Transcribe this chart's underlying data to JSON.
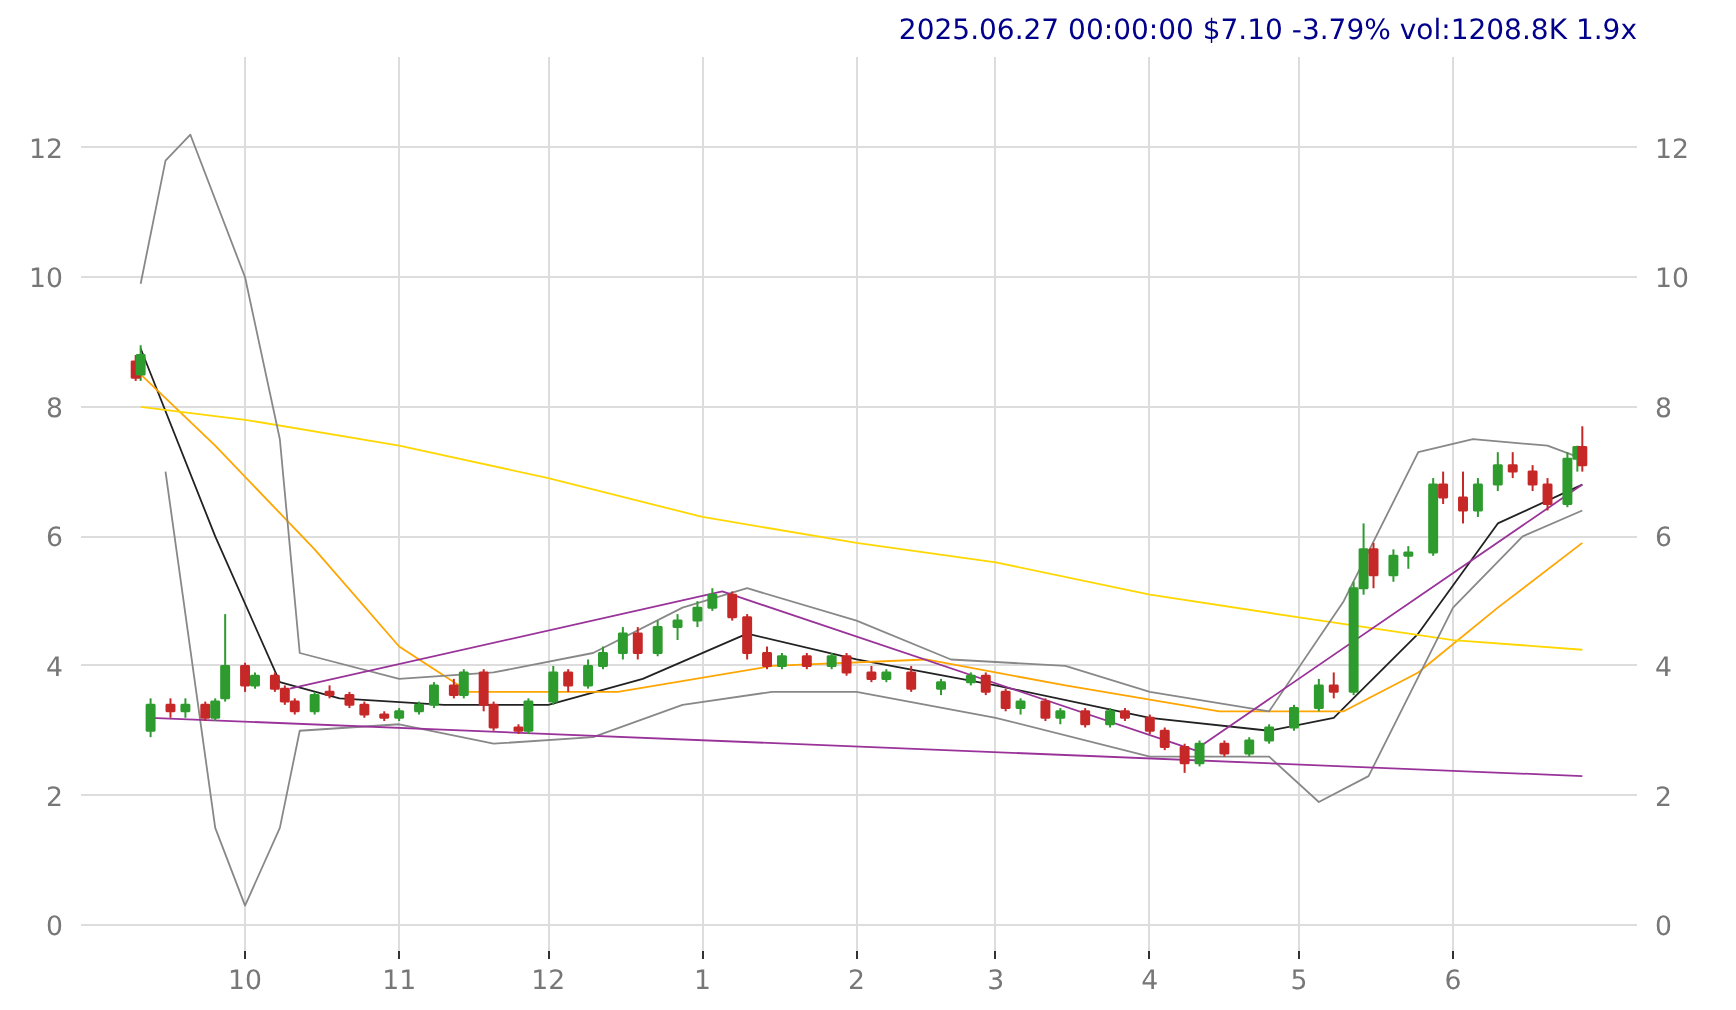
{
  "chart_data": {
    "type": "candlestick",
    "title": "2025.06.27 00:00:00 $7.10 -3.79% vol:1208.8K 1.9x",
    "x": [
      "2024-09-09",
      "2024-09-10",
      "2024-09-12",
      "2024-09-16",
      "2024-09-19",
      "2024-09-23",
      "2024-09-25",
      "2024-09-27",
      "2024-10-01",
      "2024-10-03",
      "2024-10-07",
      "2024-10-09",
      "2024-10-11",
      "2024-10-15",
      "2024-10-18",
      "2024-10-22",
      "2024-10-25",
      "2024-10-29",
      "2024-11-01",
      "2024-11-05",
      "2024-11-08",
      "2024-11-12",
      "2024-11-14",
      "2024-11-18",
      "2024-11-20",
      "2024-11-25",
      "2024-11-27",
      "2024-12-02",
      "2024-12-05",
      "2024-12-09",
      "2024-12-12",
      "2024-12-16",
      "2024-12-19",
      "2024-12-23",
      "2024-12-27",
      "2024-12-31",
      "2025-01-03",
      "2025-01-07",
      "2025-01-10",
      "2025-01-14",
      "2025-01-17",
      "2025-01-22",
      "2025-01-27",
      "2025-01-30",
      "2025-02-04",
      "2025-02-07",
      "2025-02-12",
      "2025-02-18",
      "2025-02-24",
      "2025-02-27",
      "2025-03-03",
      "2025-03-06",
      "2025-03-11",
      "2025-03-14",
      "2025-03-19",
      "2025-03-24",
      "2025-03-27",
      "2025-04-01",
      "2025-04-04",
      "2025-04-08",
      "2025-04-11",
      "2025-04-16",
      "2025-04-21",
      "2025-04-25",
      "2025-04-30",
      "2025-05-05",
      "2025-05-08",
      "2025-05-12",
      "2025-05-14",
      "2025-05-16",
      "2025-05-20",
      "2025-05-23",
      "2025-05-28",
      "2025-05-30",
      "2025-06-03",
      "2025-06-06",
      "2025-06-10",
      "2025-06-13",
      "2025-06-17",
      "2025-06-20",
      "2025-06-24",
      "2025-06-26",
      "2025-06-27"
    ],
    "ohlc": [
      [
        8.7,
        8.8,
        8.4,
        8.45
      ],
      [
        8.5,
        8.95,
        8.4,
        8.8
      ],
      [
        3.0,
        3.5,
        2.9,
        3.4
      ],
      [
        3.4,
        3.5,
        3.2,
        3.3
      ],
      [
        3.3,
        3.5,
        3.2,
        3.4
      ],
      [
        3.4,
        3.45,
        3.15,
        3.2
      ],
      [
        3.2,
        3.5,
        3.15,
        3.45
      ],
      [
        3.5,
        4.8,
        3.45,
        4.0
      ],
      [
        4.0,
        4.05,
        3.6,
        3.7
      ],
      [
        3.7,
        3.9,
        3.65,
        3.85
      ],
      [
        3.85,
        3.9,
        3.6,
        3.65
      ],
      [
        3.65,
        3.7,
        3.4,
        3.45
      ],
      [
        3.45,
        3.5,
        3.25,
        3.3
      ],
      [
        3.3,
        3.6,
        3.25,
        3.55
      ],
      [
        3.6,
        3.7,
        3.5,
        3.55
      ],
      [
        3.55,
        3.6,
        3.35,
        3.4
      ],
      [
        3.4,
        3.45,
        3.2,
        3.25
      ],
      [
        3.25,
        3.3,
        3.15,
        3.2
      ],
      [
        3.2,
        3.35,
        3.15,
        3.3
      ],
      [
        3.3,
        3.45,
        3.25,
        3.4
      ],
      [
        3.4,
        3.75,
        3.35,
        3.7
      ],
      [
        3.7,
        3.8,
        3.5,
        3.55
      ],
      [
        3.55,
        3.95,
        3.5,
        3.9
      ],
      [
        3.9,
        3.95,
        3.3,
        3.4
      ],
      [
        3.4,
        3.45,
        3.0,
        3.05
      ],
      [
        3.05,
        3.1,
        2.95,
        3.0
      ],
      [
        3.0,
        3.5,
        2.95,
        3.45
      ],
      [
        3.45,
        4.0,
        3.4,
        3.9
      ],
      [
        3.9,
        3.95,
        3.6,
        3.7
      ],
      [
        3.7,
        4.1,
        3.65,
        4.0
      ],
      [
        4.0,
        4.3,
        3.95,
        4.2
      ],
      [
        4.2,
        4.6,
        4.1,
        4.5
      ],
      [
        4.5,
        4.6,
        4.1,
        4.2
      ],
      [
        4.2,
        4.7,
        4.15,
        4.6
      ],
      [
        4.6,
        4.8,
        4.4,
        4.7
      ],
      [
        4.7,
        5.0,
        4.6,
        4.9
      ],
      [
        4.9,
        5.2,
        4.85,
        5.1
      ],
      [
        5.1,
        5.15,
        4.7,
        4.75
      ],
      [
        4.75,
        4.8,
        4.1,
        4.2
      ],
      [
        4.2,
        4.3,
        3.95,
        4.0
      ],
      [
        4.0,
        4.2,
        3.95,
        4.15
      ],
      [
        4.15,
        4.2,
        3.95,
        4.0
      ],
      [
        4.0,
        4.2,
        3.95,
        4.15
      ],
      [
        4.15,
        4.2,
        3.85,
        3.9
      ],
      [
        3.9,
        4.0,
        3.75,
        3.8
      ],
      [
        3.8,
        3.95,
        3.75,
        3.9
      ],
      [
        3.9,
        4.0,
        3.6,
        3.65
      ],
      [
        3.65,
        3.8,
        3.55,
        3.75
      ],
      [
        3.75,
        3.9,
        3.7,
        3.85
      ],
      [
        3.85,
        3.9,
        3.55,
        3.6
      ],
      [
        3.6,
        3.65,
        3.3,
        3.35
      ],
      [
        3.35,
        3.5,
        3.25,
        3.45
      ],
      [
        3.45,
        3.5,
        3.15,
        3.2
      ],
      [
        3.2,
        3.35,
        3.1,
        3.3
      ],
      [
        3.3,
        3.35,
        3.05,
        3.1
      ],
      [
        3.1,
        3.35,
        3.05,
        3.3
      ],
      [
        3.3,
        3.35,
        3.15,
        3.2
      ],
      [
        3.2,
        3.25,
        2.95,
        3.0
      ],
      [
        3.0,
        3.05,
        2.7,
        2.75
      ],
      [
        2.75,
        2.8,
        2.35,
        2.5
      ],
      [
        2.5,
        2.85,
        2.45,
        2.8
      ],
      [
        2.8,
        2.85,
        2.6,
        2.65
      ],
      [
        2.65,
        2.9,
        2.6,
        2.85
      ],
      [
        2.85,
        3.1,
        2.8,
        3.05
      ],
      [
        3.05,
        3.4,
        3.0,
        3.35
      ],
      [
        3.35,
        3.8,
        3.3,
        3.7
      ],
      [
        3.7,
        3.9,
        3.5,
        3.6
      ],
      [
        3.6,
        5.3,
        3.55,
        5.2
      ],
      [
        5.2,
        6.2,
        5.1,
        5.8
      ],
      [
        5.8,
        5.9,
        5.2,
        5.4
      ],
      [
        5.4,
        5.8,
        5.3,
        5.7
      ],
      [
        5.7,
        5.85,
        5.5,
        5.75
      ],
      [
        5.75,
        6.9,
        5.7,
        6.8
      ],
      [
        6.8,
        7.0,
        6.5,
        6.6
      ],
      [
        6.6,
        7.0,
        6.2,
        6.4
      ],
      [
        6.4,
        6.9,
        6.3,
        6.8
      ],
      [
        6.8,
        7.3,
        6.7,
        7.1
      ],
      [
        7.1,
        7.3,
        6.9,
        7.0
      ],
      [
        7.0,
        7.1,
        6.7,
        6.8
      ],
      [
        6.8,
        6.9,
        6.4,
        6.5
      ],
      [
        6.5,
        7.3,
        6.45,
        7.2
      ],
      [
        7.2,
        7.4,
        7.0,
        7.38
      ],
      [
        7.38,
        7.7,
        7.0,
        7.1
      ]
    ],
    "colors": [
      "#c62828",
      "#2e9b2e",
      "#2e9b2e",
      "#c62828",
      "#2e9b2e",
      "#c62828",
      "#2e9b2e",
      "#2e9b2e",
      "#c62828",
      "#2e9b2e",
      "#c62828",
      "#c62828",
      "#c62828",
      "#2e9b2e",
      "#c62828",
      "#c62828",
      "#c62828",
      "#c62828",
      "#2e9b2e",
      "#2e9b2e",
      "#2e9b2e",
      "#c62828",
      "#2e9b2e",
      "#c62828",
      "#c62828",
      "#c62828",
      "#2e9b2e",
      "#2e9b2e",
      "#c62828",
      "#2e9b2e",
      "#2e9b2e",
      "#2e9b2e",
      "#c62828",
      "#2e9b2e",
      "#2e9b2e",
      "#2e9b2e",
      "#2e9b2e",
      "#c62828",
      "#c62828",
      "#c62828",
      "#2e9b2e",
      "#c62828",
      "#2e9b2e",
      "#c62828",
      "#c62828",
      "#2e9b2e",
      "#c62828",
      "#2e9b2e",
      "#2e9b2e",
      "#c62828",
      "#c62828",
      "#2e9b2e",
      "#c62828",
      "#2e9b2e",
      "#c62828",
      "#2e9b2e",
      "#c62828",
      "#c62828",
      "#c62828",
      "#c62828",
      "#2e9b2e",
      "#c62828",
      "#2e9b2e",
      "#2e9b2e",
      "#2e9b2e",
      "#2e9b2e",
      "#c62828",
      "#2e9b2e",
      "#2e9b2e",
      "#c62828",
      "#2e9b2e",
      "#2e9b2e",
      "#2e9b2e",
      "#c62828",
      "#c62828",
      "#2e9b2e",
      "#2e9b2e",
      "#c62828",
      "#c62828",
      "#c62828",
      "#2e9b2e",
      "#2e9b2e",
      "#c62828"
    ],
    "series": [
      {
        "type": "line",
        "color": "#222222",
        "x": [
          "2024-09-10",
          "2024-09-25",
          "2024-10-08",
          "2024-10-20",
          "2024-11-10",
          "2024-12-01",
          "2024-12-20",
          "2025-01-10",
          "2025-02-01",
          "2025-03-01",
          "2025-04-01",
          "2025-04-25",
          "2025-05-08",
          "2025-05-25",
          "2025-06-10",
          "2025-06-27"
        ],
        "values": [
          8.9,
          6.0,
          3.75,
          3.5,
          3.4,
          3.4,
          3.8,
          4.5,
          4.1,
          3.7,
          3.2,
          3.0,
          3.2,
          4.5,
          6.2,
          6.8
        ]
      },
      {
        "type": "line",
        "color": "#ffa500",
        "x": [
          "2024-09-10",
          "2024-09-25",
          "2024-10-15",
          "2024-11-01",
          "2024-11-15",
          "2024-12-15",
          "2025-01-15",
          "2025-02-15",
          "2025-03-15",
          "2025-04-15",
          "2025-05-10",
          "2025-05-25",
          "2025-06-10",
          "2025-06-27"
        ],
        "values": [
          8.5,
          7.4,
          5.8,
          4.3,
          3.6,
          3.6,
          4.0,
          4.1,
          3.7,
          3.3,
          3.3,
          3.9,
          4.9,
          5.9
        ]
      },
      {
        "type": "line",
        "color": "#ffd700",
        "x": [
          "2024-09-10",
          "2024-10-01",
          "2024-11-01",
          "2024-12-01",
          "2025-01-01",
          "2025-02-01",
          "2025-03-01",
          "2025-04-01",
          "2025-05-01",
          "2025-06-01",
          "2025-06-27"
        ],
        "values": [
          8.0,
          7.8,
          7.4,
          6.9,
          6.3,
          5.9,
          5.6,
          5.1,
          4.75,
          4.4,
          4.25
        ]
      },
      {
        "type": "line",
        "color": "#888888",
        "x": [
          "2024-09-10",
          "2024-09-15",
          "2024-09-20",
          "2024-10-01",
          "2024-10-08",
          "2024-10-12",
          "2024-11-01",
          "2024-11-20",
          "2024-12-10",
          "2024-12-28",
          "2025-01-10",
          "2025-02-01",
          "2025-02-20",
          "2025-03-15",
          "2025-04-01",
          "2025-04-25",
          "2025-05-10",
          "2025-05-25",
          "2025-06-05",
          "2025-06-20",
          "2025-06-27"
        ],
        "values": [
          9.9,
          11.8,
          12.2,
          10.0,
          7.5,
          4.2,
          3.8,
          3.9,
          4.2,
          4.9,
          5.2,
          4.7,
          4.1,
          4.0,
          3.6,
          3.3,
          5.0,
          7.3,
          7.5,
          7.4,
          7.2
        ]
      },
      {
        "type": "line",
        "color": "#888888",
        "x": [
          "2024-09-15",
          "2024-09-25",
          "2024-10-01",
          "2024-10-08",
          "2024-10-12",
          "2024-11-01",
          "2024-11-20",
          "2024-12-10",
          "2024-12-28",
          "2025-01-15",
          "2025-02-01",
          "2025-03-01",
          "2025-04-01",
          "2025-04-25",
          "2025-05-05",
          "2025-05-15",
          "2025-06-01",
          "2025-06-15",
          "2025-06-27"
        ],
        "values": [
          7.0,
          1.5,
          0.3,
          1.5,
          3.0,
          3.1,
          2.8,
          2.9,
          3.4,
          3.6,
          3.6,
          3.2,
          2.6,
          2.6,
          1.9,
          2.3,
          4.9,
          6.0,
          6.4
        ]
      },
      {
        "type": "line",
        "color": "#993399",
        "x": [
          "2024-09-12",
          "2025-06-27"
        ],
        "values": [
          3.2,
          2.3
        ]
      },
      {
        "type": "line",
        "color": "#993399",
        "x": [
          "2024-10-10",
          "2025-01-05",
          "2025-04-10",
          "2025-06-27"
        ],
        "values": [
          3.65,
          5.15,
          2.7,
          6.8
        ]
      }
    ],
    "xlim": [
      "2024-08-29",
      "2025-07-08"
    ],
    "xticks": [
      {
        "value": "2024-10-01",
        "label": "10"
      },
      {
        "value": "2024-11-01",
        "label": "11"
      },
      {
        "value": "2024-12-01",
        "label": "12"
      },
      {
        "value": "2025-01-01",
        "label": "1"
      },
      {
        "value": "2025-02-01",
        "label": "2"
      },
      {
        "value": "2025-03-01",
        "label": "3"
      },
      {
        "value": "2025-04-01",
        "label": "4"
      },
      {
        "value": "2025-05-01",
        "label": "5"
      },
      {
        "value": "2025-06-01",
        "label": "6"
      }
    ],
    "ylim": [
      -0.4,
      13.4
    ],
    "yticks": [
      0,
      2,
      4,
      6,
      8,
      10,
      12
    ],
    "y2lim": [
      -0.4,
      13.4
    ],
    "y2ticks": [
      0,
      2,
      4,
      6,
      8,
      10,
      12
    ],
    "grid": true
  }
}
